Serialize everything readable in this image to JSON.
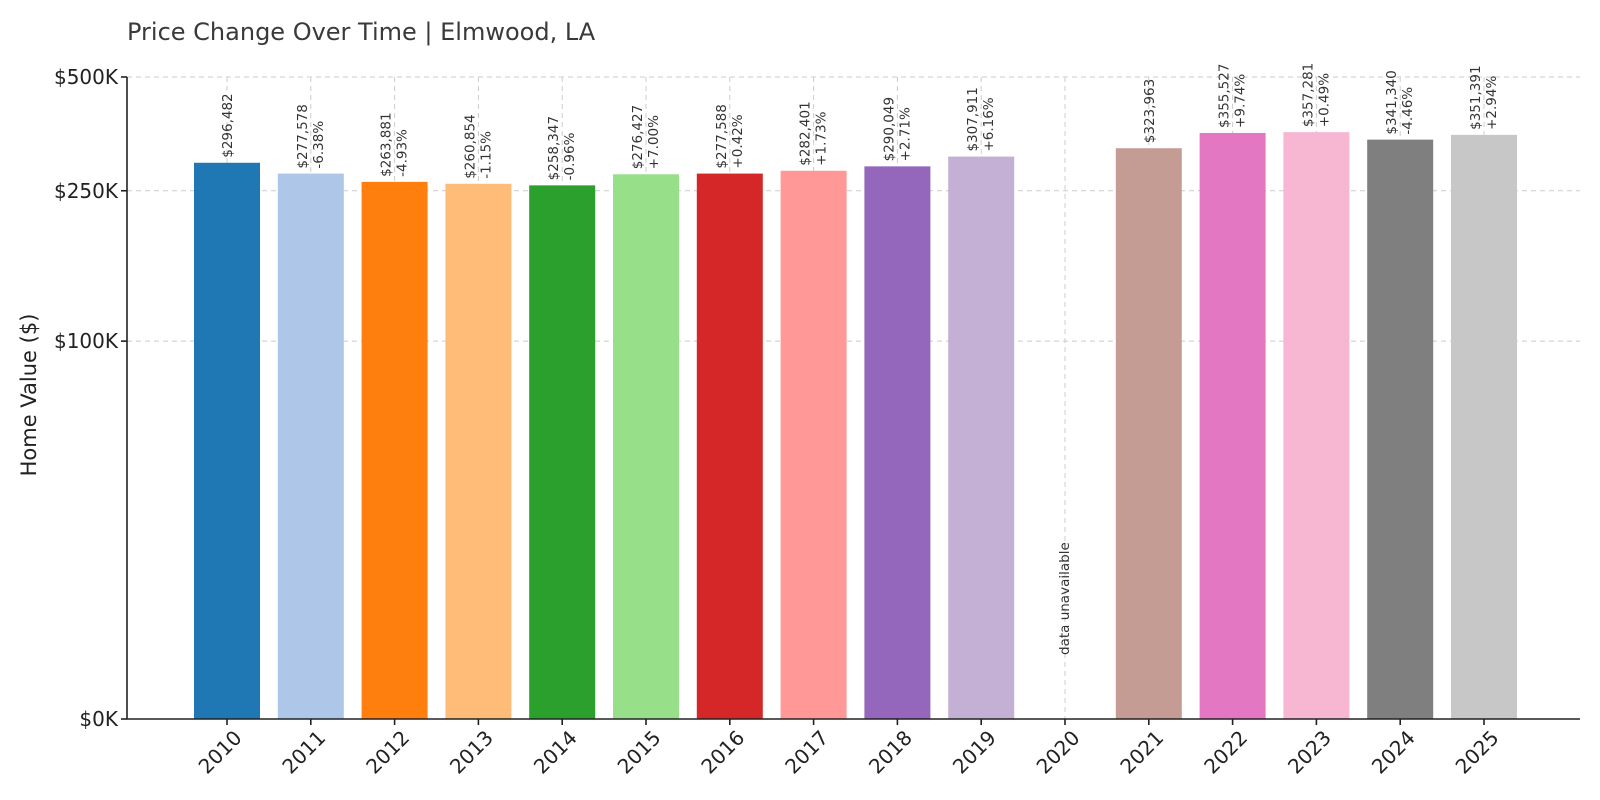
{
  "chart_data": {
    "type": "bar",
    "title": "Price Change Over Time | Elmwood, LA",
    "xlabel": "",
    "ylabel": "Home Value ($)",
    "ylim": [
      0,
      500000
    ],
    "y_scale": "symlog",
    "grid": true,
    "yticks": [
      {
        "value": 0,
        "label": "$0K"
      },
      {
        "value": 100000,
        "label": "$100K"
      },
      {
        "value": 250000,
        "label": "$250K"
      },
      {
        "value": 500000,
        "label": "$500K"
      }
    ],
    "categories": [
      "2010",
      "2011",
      "2012",
      "2013",
      "2014",
      "2015",
      "2016",
      "2017",
      "2018",
      "2019",
      "2020",
      "2021",
      "2022",
      "2023",
      "2024",
      "2025"
    ],
    "values": [
      296482,
      277578,
      263881,
      260854,
      258347,
      276427,
      277588,
      282401,
      290049,
      307911,
      null,
      323963,
      355527,
      357281,
      341340,
      351391
    ],
    "value_labels": [
      "$296,482",
      "$277,578",
      "$263,881",
      "$260,854",
      "$258,347",
      "$276,427",
      "$277,588",
      "$282,401",
      "$290,049",
      "$307,911",
      "",
      "$323,963",
      "$355,527",
      "$357,281",
      "$341,340",
      "$351,391"
    ],
    "change_labels": [
      "",
      "-6.38%",
      "-4.93%",
      "-1.15%",
      "-0.96%",
      "+7.00%",
      "+0.42%",
      "+1.73%",
      "+2.71%",
      "+6.16%",
      "",
      "",
      "+9.74%",
      "+0.49%",
      "-4.46%",
      "+2.94%"
    ],
    "missing_label": "data unavailable",
    "colors": [
      "#1f77b4",
      "#aec7e8",
      "#ff7f0e",
      "#ffbb78",
      "#2ca02c",
      "#98df8a",
      "#d62728",
      "#ff9896",
      "#9467bd",
      "#c5b0d5",
      "#8c564b",
      "#c49c94",
      "#e377c2",
      "#f7b6d2",
      "#7f7f7f",
      "#c7c7c7"
    ]
  }
}
